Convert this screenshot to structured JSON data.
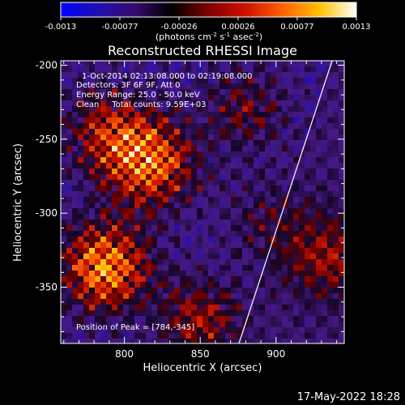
{
  "chart_data": {
    "type": "heatmap",
    "title": "Reconstructed RHESSI Image",
    "xlabel": "Heliocentric X (arcsec)",
    "ylabel": "Heliocentric Y (arcsec)",
    "xlim": [
      758,
      945
    ],
    "ylim": [
      -388,
      -197
    ],
    "xticks": [
      800,
      850,
      900
    ],
    "yticks": [
      -200,
      -250,
      -300,
      -350
    ],
    "grid": false,
    "colorbar": {
      "ticks": [
        "-0.0013",
        "-0.00077",
        "-0.00026",
        "0.00026",
        "0.00077",
        "0.0013"
      ],
      "unit_base": "(photons cm",
      "unit_exp1": "-2",
      "unit_mid": " s",
      "unit_exp2": "-1",
      "unit_mid2": " asec",
      "unit_exp3": "-2",
      "unit_end": ")",
      "colors": [
        "#0000ff",
        "#2010b0",
        "#380a70",
        "#000000",
        "#800000",
        "#d01000",
        "#ff6000",
        "#ffc000",
        "#ffffff"
      ]
    },
    "annotations": [
      "1-Oct-2014 02:13:08.000 to 02:19:08.000",
      "Detectors: 3F 6F 9F, Att 0",
      "Energy Range: 25.0 - 50.0 keV",
      "Clean     Total counts: 9.59E+03"
    ],
    "peak_label": "Position of Peak = [784,-345]",
    "hotspots": [
      {
        "x": 787,
        "y": -336,
        "value": 1.0
      },
      {
        "x": 818,
        "y": -267,
        "value": 0.85
      },
      {
        "x": 790,
        "y": -245,
        "value": 0.6
      },
      {
        "x": 850,
        "y": -372,
        "value": 0.55
      },
      {
        "x": 935,
        "y": -330,
        "value": 0.65
      },
      {
        "x": 880,
        "y": -230,
        "value": 0.4
      },
      {
        "x": 895,
        "y": -305,
        "value": 0.3
      }
    ]
  },
  "footer": {
    "date": "17-May-2022 18:28"
  }
}
